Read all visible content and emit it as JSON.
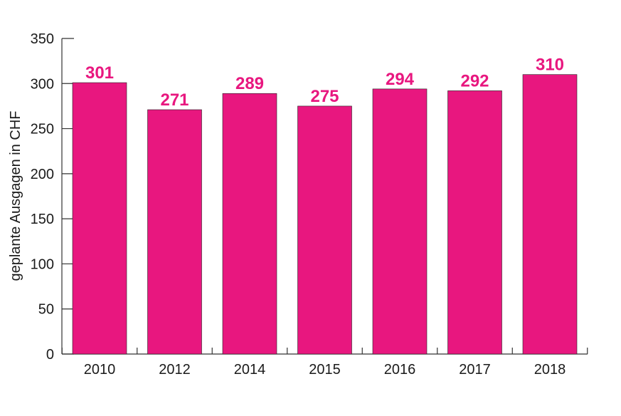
{
  "chart_data": {
    "type": "bar",
    "categories": [
      "2010",
      "2012",
      "2014",
      "2015",
      "2016",
      "2017",
      "2018"
    ],
    "values": [
      301,
      271,
      289,
      275,
      294,
      292,
      310
    ],
    "data_labels": [
      "301",
      "271",
      "289",
      "275",
      "294",
      "292",
      "310"
    ],
    "title": "",
    "xlabel": "",
    "ylabel": "geplante Ausgagen in CHF",
    "ylim": [
      0,
      350
    ],
    "yticks": [
      "0",
      "50",
      "100",
      "150",
      "200",
      "250",
      "300",
      "350"
    ],
    "grid": false,
    "legend": "none",
    "bar_color": "#e8177f",
    "label_color": "#e8177f"
  }
}
